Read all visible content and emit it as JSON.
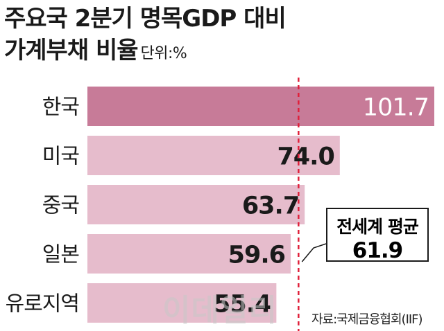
{
  "title_line1": "주요국 2분기 명목GDP 대비",
  "title_line2": "가계부채 비율",
  "unit": "단위:%",
  "colors": {
    "highlight_bar": "#c77b98",
    "bar": "#e6bccc",
    "average_line": "#e0203a",
    "text": "#1a1a1a",
    "highlight_value_text": "#ffffff"
  },
  "chart_data": {
    "type": "bar",
    "orientation": "horizontal",
    "categories": [
      "한국",
      "미국",
      "중국",
      "일본",
      "유로지역"
    ],
    "values": [
      101.7,
      74.0,
      63.7,
      59.6,
      55.4
    ],
    "value_labels": [
      "101.7",
      "74.0",
      "63.7",
      "59.6",
      "55.4"
    ],
    "highlight_category": "한국",
    "reference_line": {
      "label": "전세계 평균",
      "value": 61.9,
      "value_label": "61.9",
      "style": "dashed"
    },
    "grid": false,
    "legend": "none"
  },
  "source": "자료:국제금융협회(IIF)",
  "watermark": "이데일리"
}
